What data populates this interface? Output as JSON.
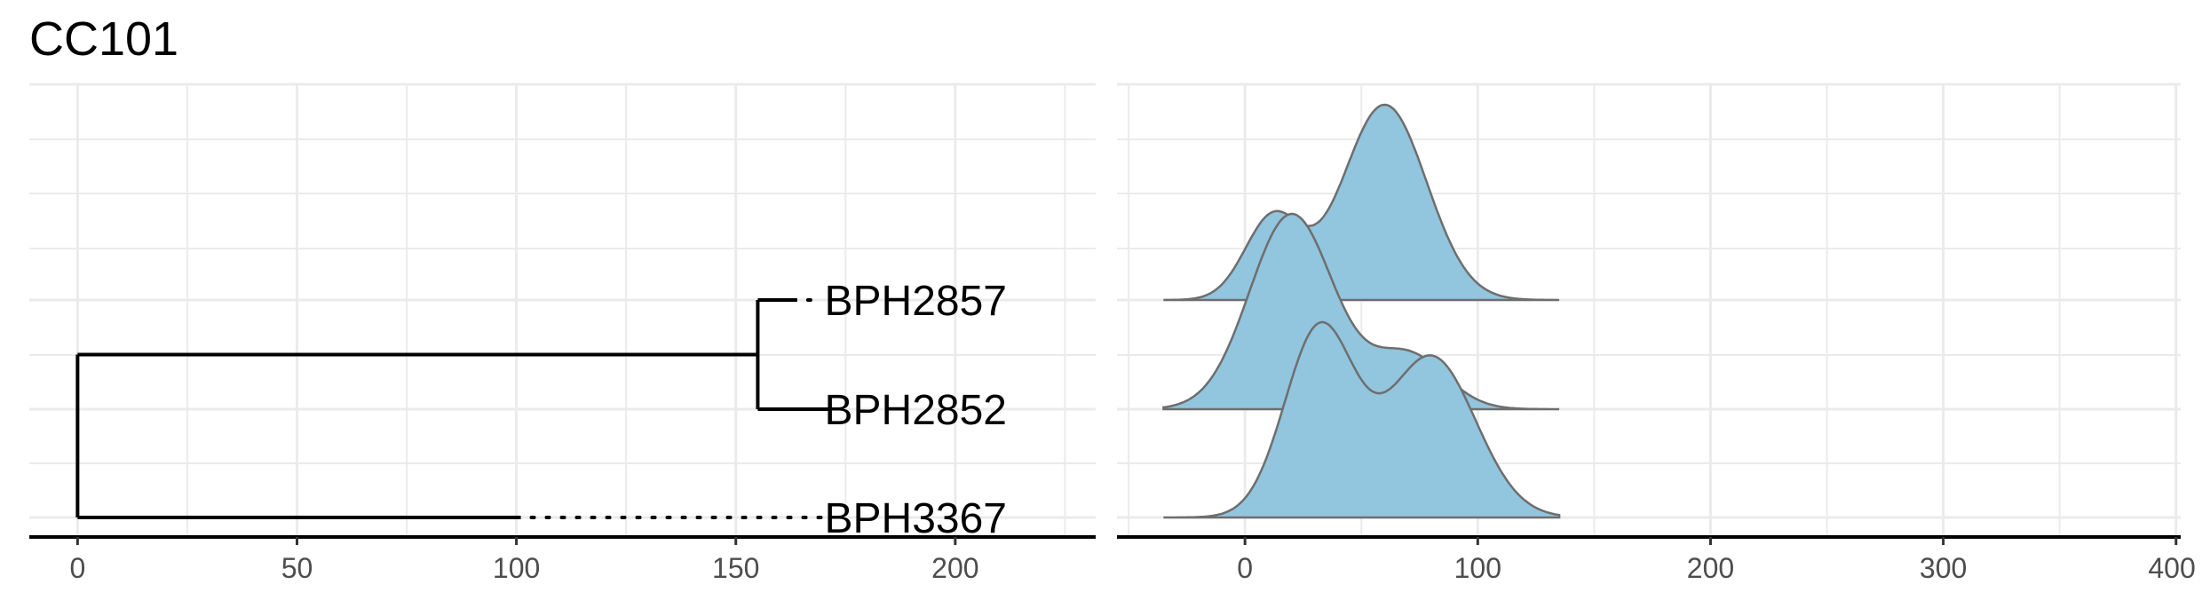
{
  "title": "CC101",
  "colors": {
    "ridge_fill": "#92c5de",
    "ridge_outline": "#6e6e6e",
    "grid": "#ebebeb",
    "axis": "#000000",
    "tick_label": "#4d4d4d"
  },
  "chart_data": [
    {
      "type": "tree",
      "panel": "left",
      "title": "CC101",
      "xlabel": "",
      "ylabel": "",
      "xlim": [
        -11,
        232
      ],
      "x_ticks": [
        0,
        50,
        100,
        150,
        200
      ],
      "x_tick_labels": [
        "0",
        "50",
        "100",
        "150",
        "200"
      ],
      "grid": true,
      "tips": [
        {
          "label": "BPH2857",
          "branch_end": 164,
          "label_x": 171
        },
        {
          "label": "BPH2852",
          "branch_end": 171,
          "label_x": 171
        },
        {
          "label": "BPH3367",
          "branch_end": 101,
          "label_x": 171
        }
      ],
      "internal_nodes": [
        {
          "name": "root",
          "x": 0,
          "children": [
            "clade",
            "BPH3367"
          ]
        },
        {
          "name": "clade",
          "x": 155,
          "children": [
            "BPH2857",
            "BPH2852"
          ]
        }
      ]
    },
    {
      "type": "ridgeline",
      "panel": "right",
      "xlabel": "",
      "ylabel": "",
      "xlim": [
        -55,
        402
      ],
      "x_ticks": [
        0,
        100,
        200,
        300,
        400
      ],
      "x_tick_labels": [
        "0",
        "100",
        "200",
        "300",
        "400"
      ],
      "grid": true,
      "x_range": [
        -35,
        135
      ],
      "series": [
        {
          "row": "BPH2857",
          "components": [
            {
              "mean": 12,
              "sd": 12,
              "weight": 0.22
            },
            {
              "mean": 60,
              "sd": 18,
              "weight": 0.78
            }
          ]
        },
        {
          "row": "BPH2852",
          "components": [
            {
              "mean": 20,
              "sd": 18,
              "weight": 0.8
            },
            {
              "mean": 70,
              "sd": 16,
              "weight": 0.2
            }
          ]
        },
        {
          "row": "BPH3367",
          "components": [
            {
              "mean": 32,
              "sd": 15,
              "weight": 0.48
            },
            {
              "mean": 80,
              "sd": 19,
              "weight": 0.52
            }
          ]
        }
      ]
    }
  ]
}
